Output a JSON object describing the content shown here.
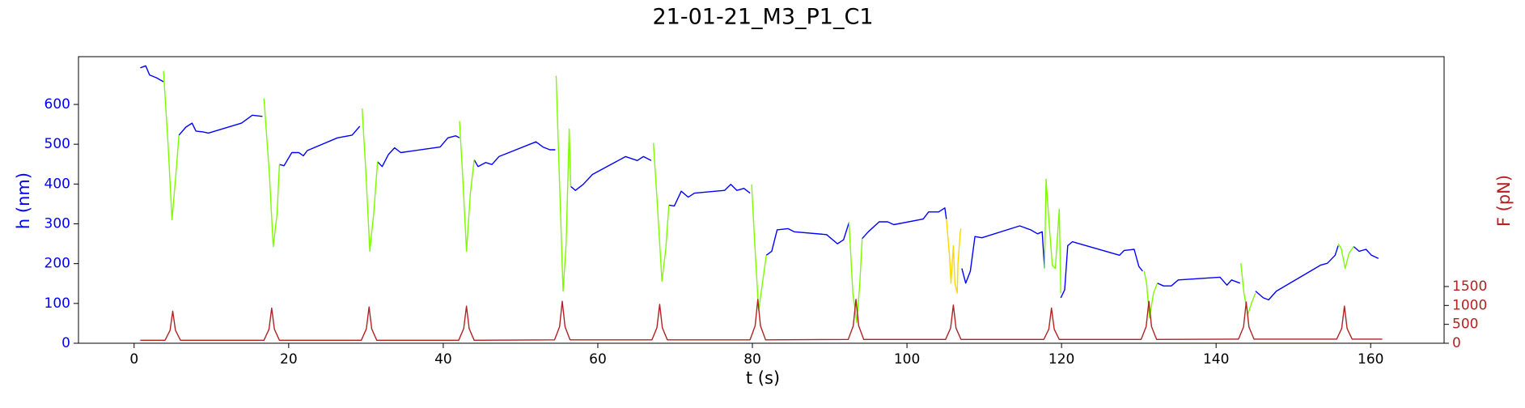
{
  "chart_data": {
    "type": "line",
    "title": "21-01-21_M3_P1_C1",
    "xlabel": "t (s)",
    "ylabel": "h (nm)",
    "y2label": "F (pN)",
    "ylabel_color": "#0000ff",
    "y2label_color": "#b22222",
    "xlim": [
      -7.2,
      169.5
    ],
    "ylim": [
      0,
      720
    ],
    "y2lim": [
      0,
      7580
    ],
    "xticks": [
      0,
      20,
      40,
      60,
      80,
      100,
      120,
      140,
      160
    ],
    "yticks": [
      0,
      100,
      200,
      300,
      400,
      500,
      600
    ],
    "y2ticks": [
      0,
      500,
      1000,
      1500
    ],
    "grid": false,
    "series": [
      {
        "color": "#0000ff",
        "x": [
          0.8,
          1.5,
          2.0,
          2.9,
          3.8,
          null,
          5.8,
          6.7,
          7.5,
          8.0,
          8.9,
          9.6,
          13.9,
          15.3,
          16.6,
          null,
          18.8,
          19.4,
          20.4,
          21.3,
          21.9,
          22.4,
          26.3,
          28.2,
          29.2,
          null,
          31.5,
          32.1,
          32.9,
          33.7,
          34.5,
          39.6,
          40.6,
          41.6,
          42.1,
          null,
          44.0,
          44.5,
          45.5,
          46.3,
          47.2,
          52.0,
          52.9,
          53.8,
          54.5,
          null,
          56.5,
          57.1,
          58.1,
          59.3,
          63.6,
          65.1,
          65.9,
          66.9,
          null,
          69.2,
          69.9,
          70.8,
          71.7,
          72.5,
          76.4,
          77.2,
          78.0,
          78.9,
          79.7,
          null,
          81.8,
          82.5,
          83.2,
          84.6,
          85.4,
          89.6,
          91.0,
          91.8,
          92.5,
          null,
          94.2,
          95.0,
          96.4,
          97.5,
          98.3,
          102.1,
          102.8,
          104.1,
          104.9,
          105.1,
          null,
          107.1,
          107.6,
          108.2,
          108.8,
          109.7,
          114.6,
          116.0,
          116.9,
          117.5,
          117.8,
          null,
          119.9,
          120.4,
          120.8,
          121.4,
          122.3,
          127.5,
          128.1,
          129.4,
          130.0,
          130.5,
          null,
          132.4,
          133.2,
          134.2,
          135.1,
          140.5,
          141.4,
          142.0,
          143.1,
          null,
          145.1,
          146.1,
          146.8,
          147.8,
          153.5,
          154.4,
          155.4,
          155.8,
          null,
          157.8,
          158.5,
          159.4,
          160.1,
          161.0
        ],
        "values": [
          692,
          697,
          674,
          667,
          657,
          null,
          523,
          543,
          553,
          533,
          531,
          528,
          553,
          573,
          570,
          null,
          449,
          446,
          479,
          479,
          471,
          484,
          516,
          523,
          545,
          null,
          456,
          444,
          474,
          491,
          479,
          493,
          516,
          521,
          516,
          null,
          461,
          444,
          454,
          449,
          469,
          506,
          493,
          486,
          486,
          null,
          394,
          384,
          399,
          424,
          469,
          459,
          469,
          459,
          null,
          347,
          345,
          382,
          367,
          377,
          384,
          399,
          384,
          389,
          377,
          null,
          221,
          231,
          285,
          288,
          280,
          273,
          250,
          260,
          303,
          null,
          263,
          280,
          305,
          305,
          298,
          312,
          330,
          330,
          340,
          312,
          null,
          188,
          151,
          181,
          268,
          265,
          295,
          285,
          275,
          280,
          188,
          null,
          114,
          134,
          245,
          255,
          250,
          221,
          233,
          236,
          193,
          181,
          null,
          151,
          144,
          144,
          159,
          166,
          146,
          159,
          151,
          null,
          131,
          114,
          109,
          131,
          196,
          201,
          221,
          245,
          null,
          243,
          231,
          236,
          221,
          213
        ]
      },
      {
        "color": "#7cfc00",
        "x": [
          3.8,
          4.4,
          4.9,
          5.4,
          5.8,
          null,
          16.8,
          17.5,
          18.0,
          18.5,
          18.8,
          null,
          29.5,
          30.0,
          30.5,
          31.0,
          31.5,
          null,
          42.1,
          42.5,
          43.0,
          43.5,
          44.0,
          null,
          54.6,
          55.1,
          55.5,
          55.9,
          56.3,
          56.5,
          null,
          67.2,
          67.7,
          68.3,
          68.8,
          69.2,
          null,
          79.9,
          80.3,
          80.8,
          81.3,
          81.8,
          null,
          92.5,
          93.0,
          93.5,
          93.9,
          94.2,
          null,
          117.8,
          118.0,
          118.4,
          118.8,
          119.2,
          119.7,
          119.9,
          null,
          130.7,
          131.0,
          131.4,
          131.9,
          132.4,
          null,
          143.2,
          143.6,
          144.1,
          144.6,
          145.1,
          null,
          155.8,
          156.2,
          156.7,
          157.2,
          157.8
        ],
        "values": [
          684,
          498,
          310,
          424,
          523,
          null,
          615,
          424,
          243,
          325,
          449,
          null,
          590,
          424,
          231,
          325,
          456,
          null,
          558,
          424,
          231,
          374,
          461,
          null,
          672,
          374,
          131,
          250,
          538,
          394,
          null,
          503,
          350,
          156,
          238,
          347,
          null,
          399,
          250,
          82,
          151,
          221,
          null,
          305,
          126,
          52,
          151,
          263,
          null,
          188,
          412,
          300,
          196,
          188,
          337,
          126,
          null,
          181,
          151,
          64,
          126,
          151,
          null,
          201,
          126,
          72,
          102,
          126,
          null,
          250,
          238,
          188,
          226,
          243
        ]
      },
      {
        "color": "#ffd700",
        "x": [
          105.1,
          105.5,
          105.7,
          106.0,
          106.2,
          106.5,
          106.6,
          106.9,
          107.0
        ],
        "values": [
          312,
          221,
          151,
          245,
          151,
          126,
          201,
          280,
          288
        ]
      },
      {
        "color": "#b22222",
        "axis": "y2",
        "x": [
          0.8,
          4.0,
          4.65,
          5.0,
          5.35,
          6.0,
          16.8,
          17.45,
          17.8,
          18.15,
          18.8,
          29.4,
          30.05,
          30.4,
          30.75,
          31.4,
          42.0,
          42.65,
          43.0,
          43.35,
          44.0,
          54.4,
          55.05,
          55.4,
          55.75,
          56.4,
          67.0,
          67.65,
          68.0,
          68.35,
          69.0,
          79.7,
          80.35,
          80.7,
          81.05,
          81.7,
          92.4,
          93.05,
          93.4,
          93.75,
          94.4,
          105.0,
          105.65,
          106.0,
          106.35,
          107.0,
          117.7,
          118.35,
          118.7,
          119.05,
          119.7,
          130.3,
          130.95,
          131.3,
          131.65,
          132.3,
          142.9,
          143.55,
          143.9,
          144.25,
          144.9,
          155.6,
          156.25,
          156.6,
          156.95,
          157.6,
          161.5
        ],
        "values": [
          80,
          80,
          340,
          850,
          340,
          80,
          80,
          370,
          930,
          370,
          80,
          80,
          380,
          960,
          380,
          80,
          80,
          390,
          980,
          390,
          80,
          90,
          440,
          1110,
          440,
          90,
          90,
          410,
          1030,
          410,
          90,
          90,
          460,
          1160,
          460,
          90,
          100,
          460,
          1160,
          460,
          100,
          100,
          400,
          1010,
          400,
          100,
          100,
          370,
          930,
          370,
          100,
          100,
          440,
          1110,
          440,
          100,
          110,
          430,
          1090,
          430,
          110,
          110,
          390,
          980,
          390,
          110,
          110
        ]
      }
    ]
  }
}
